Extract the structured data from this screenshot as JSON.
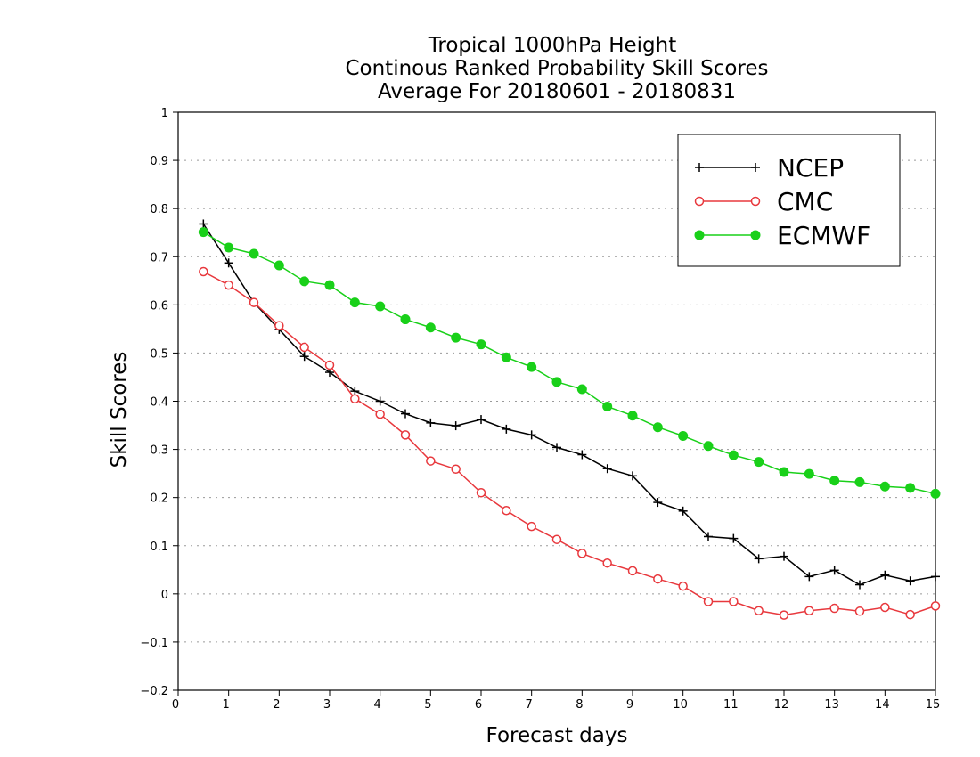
{
  "chart_data": {
    "type": "line",
    "title": [
      "Tropical 1000hPa Height",
      "Continous Ranked Probability Skill Scores",
      "Average For 20180601 - 20180831"
    ],
    "xlabel": "Forecast days",
    "ylabel": "Skill Scores",
    "xlim": [
      0,
      15
    ],
    "ylim": [
      -0.2,
      1
    ],
    "xticks": [
      "0",
      "1",
      "2",
      "3",
      "4",
      "5",
      "6",
      "7",
      "8",
      "9",
      "10",
      "11",
      "12",
      "13",
      "14",
      "15"
    ],
    "yticks": [
      "−0.2",
      "−0.1",
      "0",
      "0.1",
      "0.2",
      "0.3",
      "0.4",
      "0.5",
      "0.6",
      "0.7",
      "0.8",
      "0.9",
      "1"
    ],
    "grid": "horizontal dotted",
    "legend_position": "top-right",
    "x": [
      0.5,
      1,
      1.5,
      2,
      2.5,
      3,
      3.5,
      4,
      4.5,
      5,
      5.5,
      6,
      6.5,
      7,
      7.5,
      8,
      8.5,
      9,
      9.5,
      10,
      10.5,
      11,
      11.5,
      12,
      12.5,
      13,
      13.5,
      14,
      14.5,
      15
    ],
    "series": [
      {
        "name": "NCEP",
        "color": "#000000",
        "marker": "plus",
        "values": [
          0.768,
          0.687,
          0.605,
          0.549,
          0.493,
          0.46,
          0.421,
          0.4,
          0.374,
          0.355,
          0.349,
          0.362,
          0.342,
          0.33,
          0.304,
          0.289,
          0.26,
          0.245,
          0.19,
          0.172,
          0.119,
          0.115,
          0.073,
          0.078,
          0.036,
          0.049,
          0.019,
          0.039,
          0.027,
          0.036
        ]
      },
      {
        "name": "CMC",
        "color": "#e8383d",
        "marker": "open-circle",
        "values": [
          0.669,
          0.641,
          0.605,
          0.557,
          0.512,
          0.475,
          0.405,
          0.373,
          0.33,
          0.276,
          0.259,
          0.21,
          0.173,
          0.14,
          0.113,
          0.084,
          0.064,
          0.048,
          0.031,
          0.016,
          -0.016,
          -0.016,
          -0.035,
          -0.044,
          -0.035,
          -0.03,
          -0.036,
          -0.028,
          -0.043,
          -0.025
        ]
      },
      {
        "name": "ECMWF",
        "color": "#19d019",
        "marker": "filled-circle",
        "values": [
          0.751,
          0.719,
          0.706,
          0.682,
          0.649,
          0.641,
          0.605,
          0.597,
          0.57,
          0.553,
          0.532,
          0.518,
          0.491,
          0.471,
          0.44,
          0.425,
          0.389,
          0.37,
          0.346,
          0.328,
          0.307,
          0.288,
          0.274,
          0.253,
          0.249,
          0.235,
          0.232,
          0.223,
          0.22,
          0.208
        ]
      }
    ]
  }
}
